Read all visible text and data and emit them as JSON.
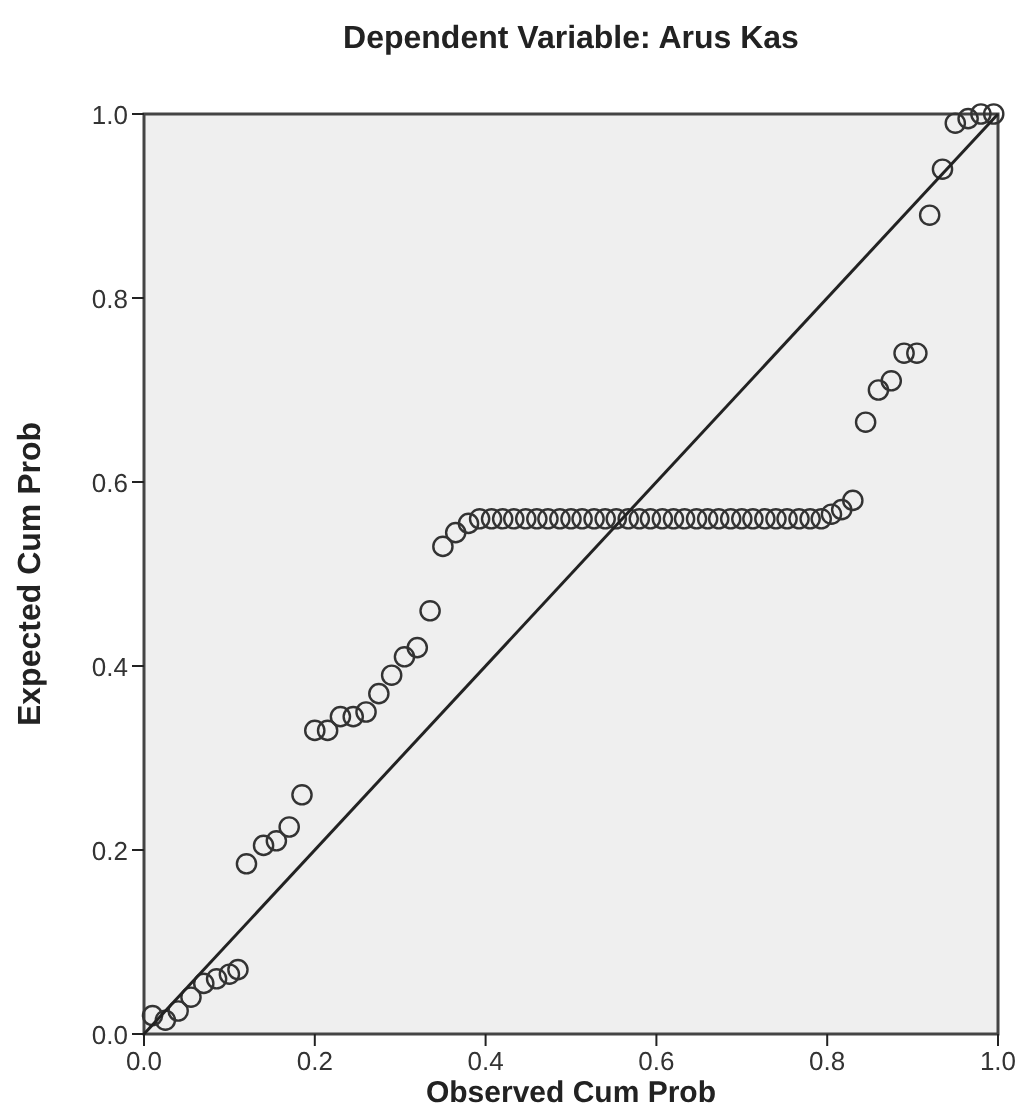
{
  "chart_data": {
    "type": "scatter",
    "title": "Dependent Variable: Arus Kas",
    "xlabel": "Observed Cum Prob",
    "ylabel": "Expected Cum Prob",
    "xlim": [
      0,
      1
    ],
    "ylim": [
      0,
      1
    ],
    "xticks": [
      {
        "value": 0,
        "label": "0.0"
      },
      {
        "value": 0.2,
        "label": "0.2"
      },
      {
        "value": 0.4,
        "label": "0.4"
      },
      {
        "value": 0.6,
        "label": "0.6"
      },
      {
        "value": 0.8,
        "label": "0.8"
      },
      {
        "value": 1,
        "label": "1.0"
      }
    ],
    "yticks": [
      {
        "value": 0,
        "label": "0.0"
      },
      {
        "value": 0.2,
        "label": "0.2"
      },
      {
        "value": 0.4,
        "label": "0.4"
      },
      {
        "value": 0.6,
        "label": "0.6"
      },
      {
        "value": 0.8,
        "label": "0.8"
      },
      {
        "value": 1,
        "label": "1.0"
      }
    ],
    "marker": "circle",
    "grid": false,
    "series": [
      {
        "color": "#333333",
        "x": [
          0.01,
          0.025,
          0.04,
          0.055,
          0.07,
          0.085,
          0.1,
          0.11,
          0.12,
          0.14,
          0.155,
          0.17,
          0.185,
          0.2,
          0.215,
          0.23,
          0.245,
          0.26,
          0.275,
          0.29,
          0.305,
          0.32,
          0.335,
          0.35,
          0.365,
          0.38,
          0.393,
          0.407,
          0.42,
          0.433,
          0.447,
          0.46,
          0.473,
          0.487,
          0.5,
          0.513,
          0.527,
          0.54,
          0.553,
          0.567,
          0.58,
          0.593,
          0.607,
          0.62,
          0.633,
          0.647,
          0.66,
          0.673,
          0.687,
          0.7,
          0.713,
          0.727,
          0.74,
          0.753,
          0.767,
          0.78,
          0.793,
          0.805,
          0.817,
          0.83,
          0.845,
          0.86,
          0.875,
          0.89,
          0.905,
          0.92,
          0.935,
          0.95,
          0.965,
          0.98,
          0.995
        ],
        "values": [
          0.02,
          0.015,
          0.025,
          0.04,
          0.055,
          0.06,
          0.065,
          0.07,
          0.185,
          0.205,
          0.21,
          0.225,
          0.26,
          0.33,
          0.33,
          0.345,
          0.345,
          0.35,
          0.37,
          0.39,
          0.41,
          0.42,
          0.46,
          0.53,
          0.545,
          0.555,
          0.56,
          0.56,
          0.56,
          0.56,
          0.56,
          0.56,
          0.56,
          0.56,
          0.56,
          0.56,
          0.56,
          0.56,
          0.56,
          0.56,
          0.56,
          0.56,
          0.56,
          0.56,
          0.56,
          0.56,
          0.56,
          0.56,
          0.56,
          0.56,
          0.56,
          0.56,
          0.56,
          0.56,
          0.56,
          0.56,
          0.56,
          0.565,
          0.57,
          0.58,
          0.665,
          0.7,
          0.71,
          0.74,
          0.74,
          0.89,
          0.94,
          0.99,
          0.995,
          1.0,
          1.0
        ]
      },
      {
        "type": "line",
        "marker": "none",
        "color": "#222222",
        "x": [
          0,
          1
        ],
        "values": [
          0,
          1
        ]
      }
    ]
  }
}
